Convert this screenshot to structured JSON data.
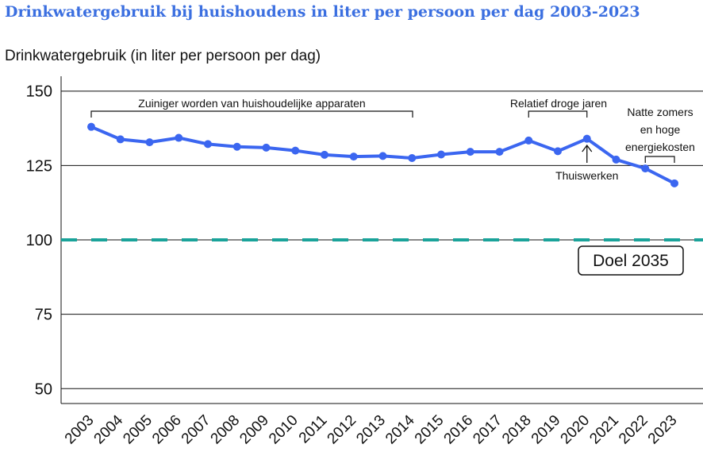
{
  "chart_data": {
    "type": "line",
    "title": "Drinkwatergebruik bij huishoudens in liter per persoon per dag 2003-2023",
    "ylabel": "Drinkwatergebruik (in liter per persoon per dag)",
    "xlabel": "",
    "ylim": [
      45,
      155
    ],
    "yticks": [
      50,
      75,
      100,
      125,
      150
    ],
    "grid": true,
    "x": [
      "2003",
      "2004",
      "2005",
      "2006",
      "2007",
      "2008",
      "2009",
      "2010",
      "2011",
      "2012",
      "2013",
      "2014",
      "2015",
      "2016",
      "2017",
      "2018",
      "2019",
      "2020",
      "2021",
      "2022",
      "2023"
    ],
    "series": [
      {
        "color": "#3b66f0",
        "values": [
          138,
          133.8,
          132.8,
          134.3,
          132.2,
          131.3,
          131,
          130,
          128.6,
          128,
          128.2,
          127.5,
          128.7,
          129.6,
          129.6,
          133.4,
          129.8,
          134,
          127,
          124,
          119
        ]
      }
    ],
    "target": {
      "value": 100,
      "label": "Doel 2035",
      "color": "#1aa39a"
    },
    "annotations": {
      "apparaten": {
        "text": "Zuiniger worden van huishoudelijke apparaten",
        "from": "2003",
        "to": "2015"
      },
      "droge_jaren": {
        "text": "Relatief droge jaren",
        "from": "2018",
        "to": "2020"
      },
      "thuiswerken": {
        "text": "Thuiswerken",
        "at": "2020"
      },
      "natte_zomers": {
        "lines": [
          "Natte zomers",
          "en hoge",
          "energiekosten"
        ],
        "from": "2022",
        "to": "2023"
      }
    }
  }
}
